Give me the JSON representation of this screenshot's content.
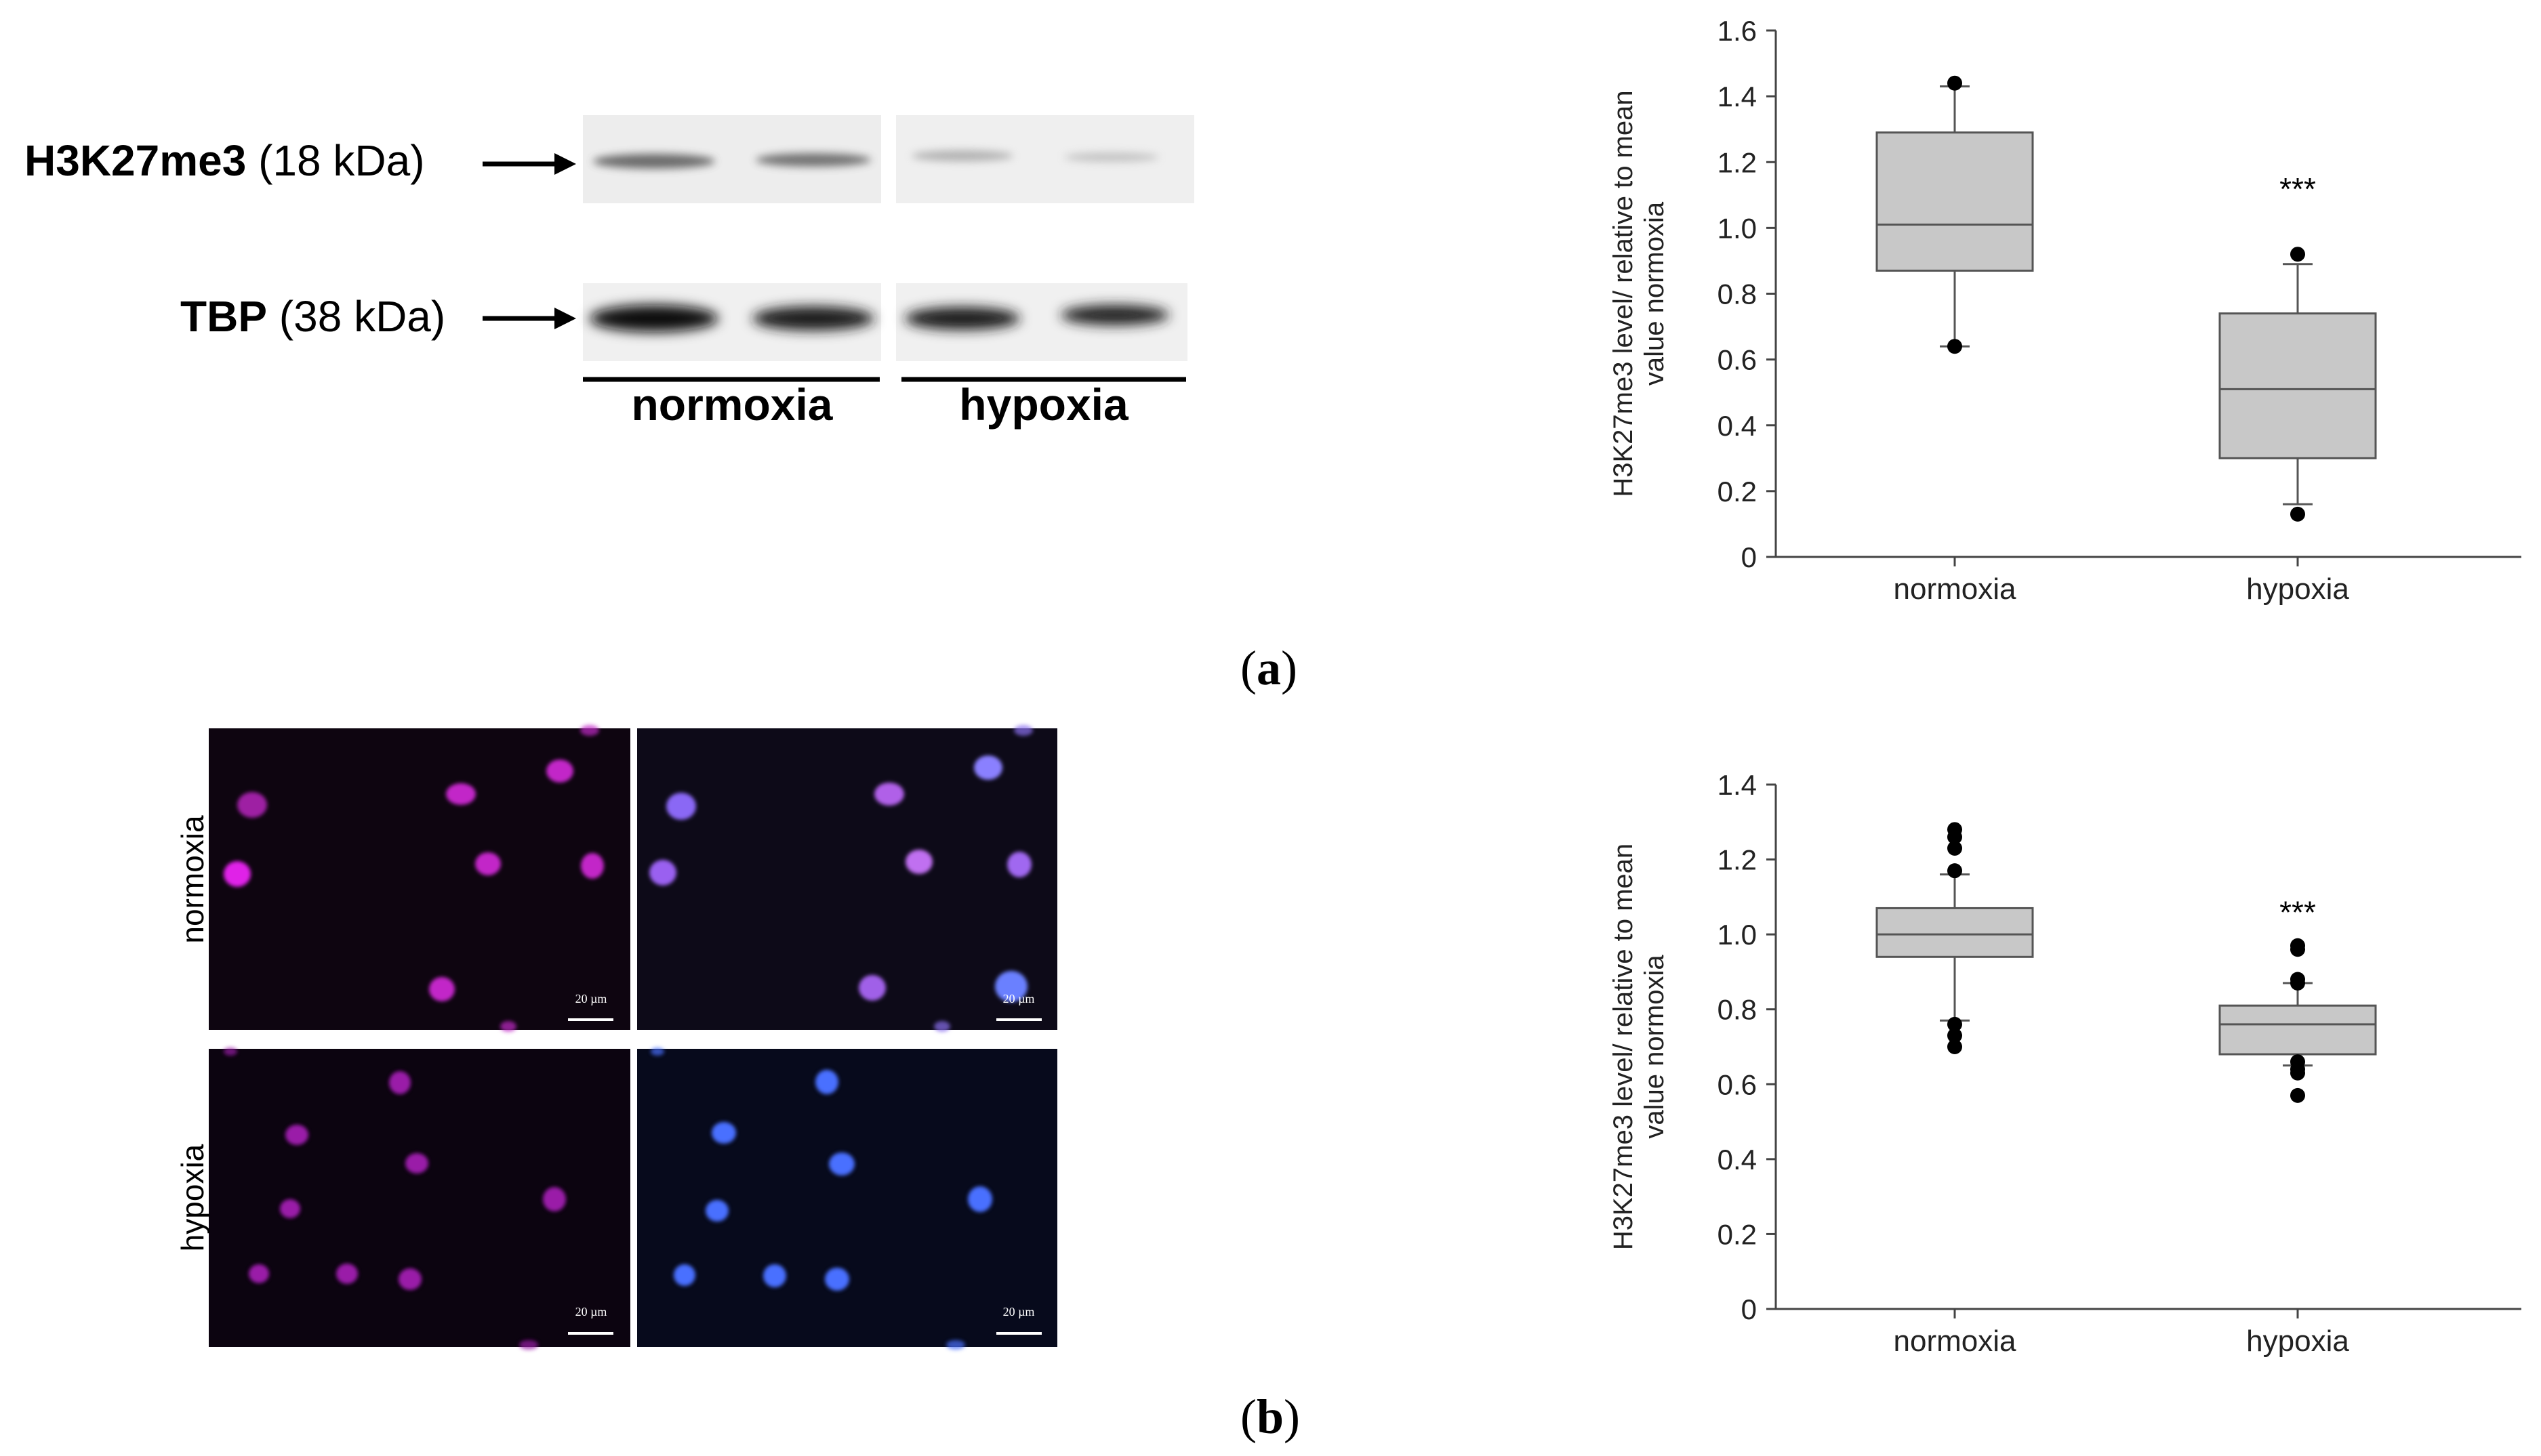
{
  "panels": {
    "a": {
      "label_open": "(",
      "label_letter": "a",
      "label_close": ")"
    },
    "b": {
      "label_open": "(",
      "label_letter": "b",
      "label_close": ")"
    }
  },
  "western_blot": {
    "rows": [
      {
        "name_bold": "H3K27me3",
        "name_rest": " (18 kDa)"
      },
      {
        "name_bold": "TBP",
        "name_rest": " (38 kDa)"
      }
    ],
    "groups": [
      "normoxia",
      "hypoxia"
    ]
  },
  "microscopy": {
    "row_labels": [
      "normoxia",
      "hypoxia"
    ],
    "scale_bar": "20 µm",
    "colors": {
      "magenta": "#c020c8",
      "blue_violet": "#8a5cf0",
      "blue": "#4a70ff"
    }
  },
  "chart_data": [
    {
      "type": "box",
      "ylabel_line1": "H3K27me3 level/ relative to mean",
      "ylabel_line2": "value normoxia",
      "categories": [
        "normoxia",
        "hypoxia"
      ],
      "ylim": [
        0,
        1.6
      ],
      "yticks": [
        "0",
        "0.2",
        "0.4",
        "0.6",
        "0.8",
        "1.0",
        "1.2",
        "1.4",
        "1.6"
      ],
      "yticks_values": [
        0,
        0.2,
        0.4,
        0.6,
        0.8,
        1.0,
        1.2,
        1.4,
        1.6
      ],
      "boxes": [
        {
          "q1": 0.87,
          "median": 1.01,
          "q3": 1.29,
          "whisker_low": 0.64,
          "whisker_high": 1.43,
          "outliers": [
            0.64,
            1.44
          ]
        },
        {
          "q1": 0.3,
          "median": 0.51,
          "q3": 0.74,
          "whisker_low": 0.16,
          "whisker_high": 0.89,
          "outliers": [
            0.92,
            0.13
          ]
        }
      ],
      "annotations": [
        {
          "category": "hypoxia",
          "text": "***",
          "y": 1.13
        }
      ],
      "box_color": "#c8c8c8"
    },
    {
      "type": "box",
      "ylabel_line1": "H3K27me3 level/ relative to mean",
      "ylabel_line2": "value normoxia",
      "categories": [
        "normoxia",
        "hypoxia"
      ],
      "ylim": [
        0,
        1.4
      ],
      "yticks": [
        "0",
        "0.2",
        "0.4",
        "0.6",
        "0.8",
        "1.0",
        "1.2",
        "1.4"
      ],
      "yticks_values": [
        0,
        0.2,
        0.4,
        0.6,
        0.8,
        1.0,
        1.2,
        1.4
      ],
      "boxes": [
        {
          "q1": 0.94,
          "median": 1.0,
          "q3": 1.07,
          "whisker_low": 0.77,
          "whisker_high": 1.16,
          "outliers": [
            1.28,
            1.26,
            1.23,
            1.17,
            0.76,
            0.73,
            0.7
          ]
        },
        {
          "q1": 0.68,
          "median": 0.76,
          "q3": 0.81,
          "whisker_low": 0.65,
          "whisker_high": 0.87,
          "outliers": [
            0.97,
            0.96,
            0.88,
            0.87,
            0.66,
            0.64,
            0.63,
            0.57
          ]
        }
      ],
      "annotations": [
        {
          "category": "hypoxia",
          "text": "***",
          "y": 1.07
        }
      ],
      "box_color": "#c8c8c8"
    }
  ]
}
